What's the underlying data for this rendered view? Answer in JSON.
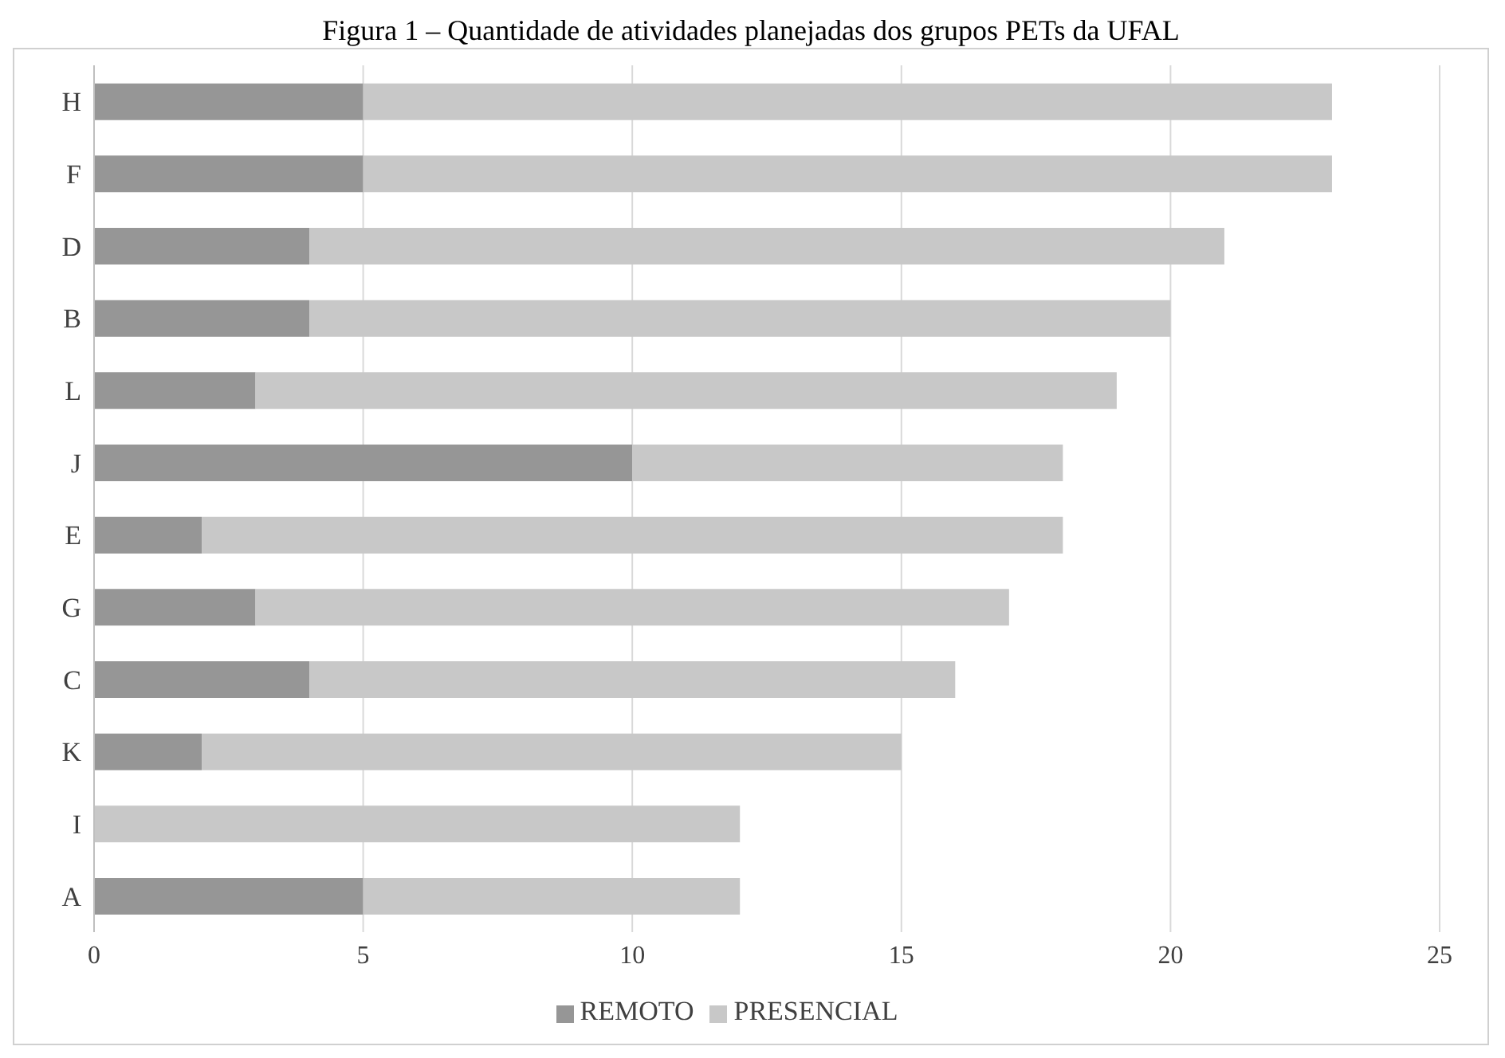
{
  "chart_data": {
    "type": "bar",
    "orientation": "horizontal",
    "stacked": true,
    "title": "Figura 1 – Quantidade de atividades planejadas dos grupos PETs da UFAL",
    "categories": [
      "H",
      "F",
      "D",
      "B",
      "L",
      "J",
      "E",
      "G",
      "C",
      "K",
      "I",
      "A"
    ],
    "series": [
      {
        "name": "REMOTO",
        "color": "#969696",
        "values": [
          5,
          5,
          4,
          4,
          3,
          10,
          2,
          3,
          4,
          2,
          0,
          5
        ]
      },
      {
        "name": "PRESENCIAL",
        "color": "#c8c8c8",
        "values": [
          18,
          18,
          17,
          16,
          16,
          8,
          16,
          14,
          12,
          13,
          12,
          7
        ]
      }
    ],
    "xlim": [
      0,
      25
    ],
    "xticks": [
      0,
      5,
      10,
      15,
      20,
      25
    ],
    "grid": "x",
    "legend": "bottom"
  }
}
